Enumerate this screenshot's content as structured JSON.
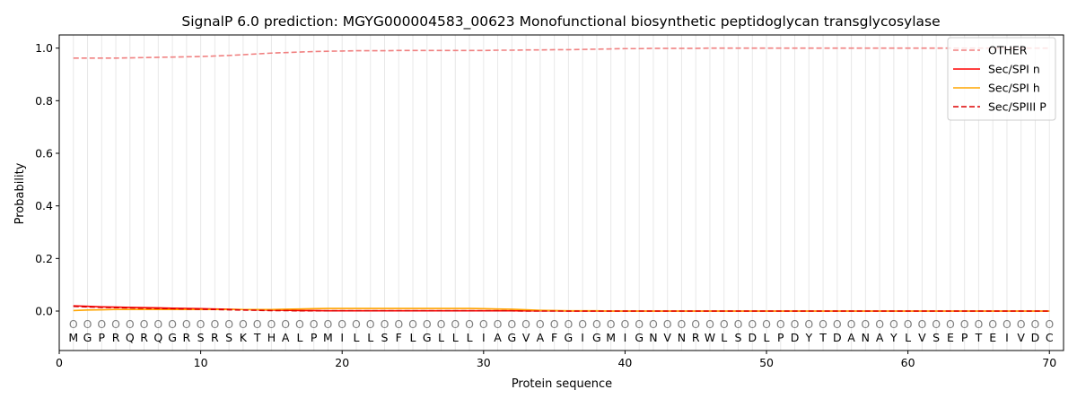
{
  "chart_data": {
    "type": "line",
    "title": "SignalP 6.0 prediction: MGYG000004583_00623 Monofunctional biosynthetic peptidoglycan transglycosylase",
    "xlabel": "Protein sequence",
    "ylabel": "Probability",
    "xlim": [
      0,
      71
    ],
    "ylim": [
      -0.15,
      1.05
    ],
    "x_ticks": [
      0,
      10,
      20,
      30,
      40,
      50,
      60,
      70
    ],
    "y_ticks": [
      0.0,
      0.2,
      0.4,
      0.6,
      0.8,
      1.0
    ],
    "grid": "vertical lines at each residue position",
    "legend_position": "top-right",
    "sequence": [
      "M",
      "G",
      "P",
      "R",
      "Q",
      "R",
      "Q",
      "G",
      "R",
      "S",
      "R",
      "S",
      "K",
      "T",
      "H",
      "A",
      "L",
      "P",
      "M",
      "I",
      "L",
      "L",
      "S",
      "F",
      "L",
      "G",
      "L",
      "L",
      "L",
      "I",
      "A",
      "G",
      "V",
      "A",
      "F",
      "G",
      "I",
      "G",
      "M",
      "I",
      "G",
      "N",
      "V",
      "N",
      "R",
      "W",
      "L",
      "S",
      "D",
      "L",
      "P",
      "D",
      "Y",
      "T",
      "D",
      "A",
      "N",
      "A",
      "Y",
      "L",
      "V",
      "S",
      "E",
      "P",
      "T",
      "E",
      "I",
      "V",
      "D",
      "C"
    ],
    "region_labels": [
      "O",
      "O",
      "O",
      "O",
      "O",
      "O",
      "O",
      "O",
      "O",
      "O",
      "O",
      "O",
      "O",
      "O",
      "O",
      "O",
      "O",
      "O",
      "O",
      "O",
      "O",
      "O",
      "O",
      "O",
      "O",
      "O",
      "O",
      "O",
      "O",
      "O",
      "O",
      "O",
      "O",
      "O",
      "O",
      "O",
      "O",
      "O",
      "O",
      "O",
      "O",
      "O",
      "O",
      "O",
      "O",
      "O",
      "O",
      "O",
      "O",
      "O",
      "O",
      "O",
      "O",
      "O",
      "O",
      "O",
      "O",
      "O",
      "O",
      "O",
      "O",
      "O",
      "O",
      "O",
      "O",
      "O",
      "O",
      "O",
      "O",
      "O"
    ],
    "series": [
      {
        "name": "OTHER",
        "color": "#f08080",
        "dash": "dashed",
        "values": [
          0.962,
          0.962,
          0.962,
          0.962,
          0.963,
          0.964,
          0.965,
          0.966,
          0.967,
          0.968,
          0.97,
          0.972,
          0.975,
          0.978,
          0.981,
          0.983,
          0.985,
          0.987,
          0.988,
          0.989,
          0.99,
          0.99,
          0.99,
          0.991,
          0.991,
          0.991,
          0.991,
          0.991,
          0.991,
          0.991,
          0.992,
          0.992,
          0.993,
          0.993,
          0.994,
          0.994,
          0.995,
          0.996,
          0.997,
          0.998,
          0.998,
          0.999,
          0.999,
          0.999,
          0.999,
          1.0,
          1.0,
          1.0,
          1.0,
          1.0,
          1.0,
          1.0,
          1.0,
          1.0,
          1.0,
          1.0,
          1.0,
          1.0,
          1.0,
          1.0,
          1.0,
          1.0,
          1.0,
          1.0,
          1.0,
          1.0,
          1.0,
          1.0,
          1.0,
          1.0
        ]
      },
      {
        "name": "Sec/SPI n",
        "color": "#ff0000",
        "dash": "solid",
        "values": [
          0.02,
          0.018,
          0.016,
          0.015,
          0.014,
          0.013,
          0.012,
          0.011,
          0.01,
          0.009,
          0.008,
          0.007,
          0.006,
          0.005,
          0.004,
          0.003,
          0.002,
          0.002,
          0.001,
          0.001,
          0.001,
          0.001,
          0.001,
          0.001,
          0.001,
          0.001,
          0.001,
          0.001,
          0.001,
          0.001,
          0.001,
          0.001,
          0.001,
          0.001,
          0.001,
          0,
          0,
          0,
          0,
          0,
          0,
          0,
          0,
          0,
          0,
          0,
          0,
          0,
          0,
          0,
          0,
          0,
          0,
          0,
          0,
          0,
          0,
          0,
          0,
          0,
          0,
          0,
          0,
          0,
          0,
          0,
          0,
          0,
          0,
          0
        ]
      },
      {
        "name": "Sec/SPI h",
        "color": "#ffa500",
        "dash": "solid",
        "values": [
          0.002,
          0.004,
          0.005,
          0.006,
          0.006,
          0.006,
          0.006,
          0.006,
          0.006,
          0.006,
          0.006,
          0.006,
          0.006,
          0.006,
          0.006,
          0.007,
          0.008,
          0.009,
          0.01,
          0.01,
          0.01,
          0.01,
          0.01,
          0.01,
          0.01,
          0.01,
          0.01,
          0.01,
          0.01,
          0.009,
          0.008,
          0.007,
          0.005,
          0.003,
          0.002,
          0.001,
          0.001,
          0.001,
          0,
          0,
          0,
          0,
          0,
          0,
          0,
          0,
          0,
          0,
          0,
          0,
          0,
          0,
          0,
          0,
          0,
          0,
          0,
          0,
          0,
          0,
          0,
          0,
          0,
          0,
          0,
          0,
          0,
          0,
          0,
          0
        ]
      },
      {
        "name": "Sec/SPIII P",
        "color": "#dd0000",
        "dash": "dashed",
        "values": [
          0.018,
          0.016,
          0.014,
          0.013,
          0.012,
          0.011,
          0.01,
          0.009,
          0.008,
          0.007,
          0.006,
          0.005,
          0.004,
          0.003,
          0.002,
          0.002,
          0.001,
          0.001,
          0.001,
          0.001,
          0.001,
          0.001,
          0.001,
          0.001,
          0.001,
          0.001,
          0.001,
          0.001,
          0.001,
          0.001,
          0.001,
          0.001,
          0,
          0,
          0,
          0,
          0,
          0,
          0,
          0,
          0,
          0,
          0,
          0,
          0,
          0,
          0,
          0,
          0,
          0,
          0,
          0,
          0,
          0,
          0,
          0,
          0,
          0,
          0,
          0,
          0,
          0,
          0,
          0,
          0,
          0,
          0,
          0,
          0,
          0
        ]
      }
    ]
  }
}
